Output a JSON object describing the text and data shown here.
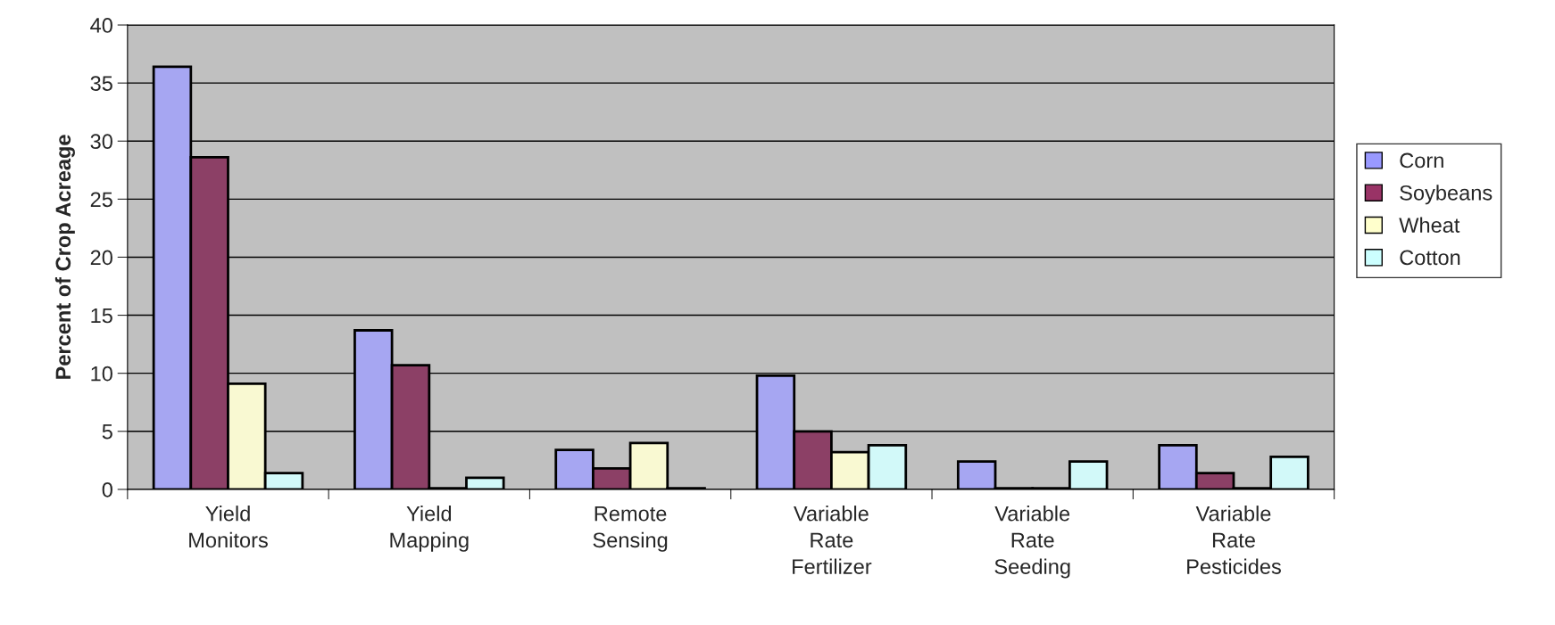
{
  "chart_data": {
    "type": "bar",
    "ylabel": "Percent of Crop Acreage",
    "categories": [
      "Yield\nMonitors",
      "Yield\nMapping",
      "Remote\nSensing",
      "Variable\nRate\nFertilizer",
      "Variable\nRate\nSeeding",
      "Variable\nRate\nPesticides"
    ],
    "series": [
      {
        "name": "Corn",
        "color": "#9999ff",
        "values": [
          36.4,
          13.7,
          3.4,
          9.8,
          2.4,
          3.8
        ]
      },
      {
        "name": "Soybeans",
        "color": "#993366",
        "values": [
          28.6,
          10.7,
          1.8,
          5.0,
          0.1,
          1.4
        ]
      },
      {
        "name": "Wheat",
        "color": "#ffffcc",
        "values": [
          9.1,
          0.1,
          4.0,
          3.2,
          0.1,
          0.1
        ]
      },
      {
        "name": "Cotton",
        "color": "#ccffff",
        "values": [
          1.4,
          1.0,
          0.1,
          3.8,
          2.4,
          2.8
        ]
      }
    ],
    "ylim": [
      0,
      40
    ],
    "yticks": [
      0,
      5,
      10,
      15,
      20,
      25,
      30,
      35,
      40
    ],
    "grid": "y",
    "legend": "right"
  }
}
